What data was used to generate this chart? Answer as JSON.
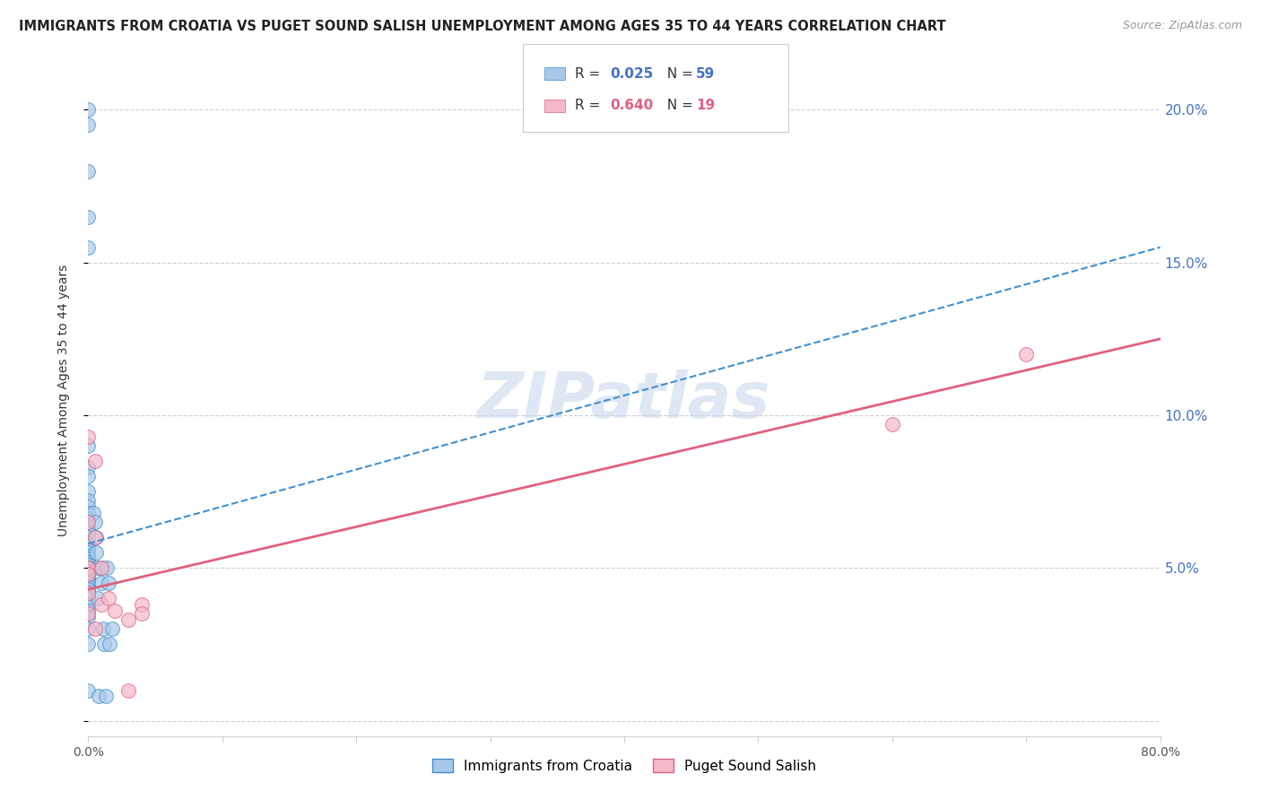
{
  "title": "IMMIGRANTS FROM CROATIA VS PUGET SOUND SALISH UNEMPLOYMENT AMONG AGES 35 TO 44 YEARS CORRELATION CHART",
  "source": "Source: ZipAtlas.com",
  "ylabel": "Unemployment Among Ages 35 to 44 years",
  "xlim": [
    0.0,
    0.8
  ],
  "ylim": [
    -0.005,
    0.215
  ],
  "blue_R": 0.025,
  "blue_N": 59,
  "pink_R": 0.64,
  "pink_N": 19,
  "blue_color": "#a8c8e8",
  "pink_color": "#f4b8c8",
  "blue_edge_color": "#4090d0",
  "pink_edge_color": "#e06080",
  "blue_line_color": "#4090d0",
  "pink_line_color": "#e06080",
  "watermark": "ZIPatlas",
  "blue_scatter_x": [
    0.0,
    0.0,
    0.0,
    0.0,
    0.0,
    0.0,
    0.0,
    0.0,
    0.0,
    0.0,
    0.0,
    0.0,
    0.0,
    0.0,
    0.0,
    0.0,
    0.0,
    0.0,
    0.0,
    0.0,
    0.0,
    0.0,
    0.0,
    0.0,
    0.0,
    0.0,
    0.0,
    0.0,
    0.0,
    0.0,
    0.0,
    0.0,
    0.0,
    0.0,
    0.0,
    0.0,
    0.0,
    0.0,
    0.0,
    0.0,
    0.0,
    0.0,
    0.0,
    0.004,
    0.005,
    0.006,
    0.006,
    0.007,
    0.007,
    0.008,
    0.01,
    0.01,
    0.011,
    0.012,
    0.013,
    0.014,
    0.015,
    0.016,
    0.018
  ],
  "blue_scatter_y": [
    0.2,
    0.195,
    0.18,
    0.165,
    0.155,
    0.09,
    0.083,
    0.08,
    0.075,
    0.072,
    0.07,
    0.068,
    0.066,
    0.065,
    0.063,
    0.062,
    0.06,
    0.058,
    0.058,
    0.057,
    0.056,
    0.055,
    0.054,
    0.053,
    0.052,
    0.051,
    0.05,
    0.05,
    0.049,
    0.048,
    0.047,
    0.046,
    0.045,
    0.044,
    0.043,
    0.042,
    0.04,
    0.038,
    0.036,
    0.034,
    0.03,
    0.025,
    0.01,
    0.068,
    0.065,
    0.06,
    0.055,
    0.05,
    0.04,
    0.008,
    0.05,
    0.045,
    0.03,
    0.025,
    0.008,
    0.05,
    0.045,
    0.025,
    0.03
  ],
  "pink_scatter_x": [
    0.0,
    0.0,
    0.0,
    0.0,
    0.0,
    0.0,
    0.005,
    0.005,
    0.005,
    0.01,
    0.01,
    0.015,
    0.02,
    0.03,
    0.03,
    0.04,
    0.04,
    0.6,
    0.7
  ],
  "pink_scatter_y": [
    0.093,
    0.065,
    0.05,
    0.048,
    0.042,
    0.035,
    0.085,
    0.06,
    0.03,
    0.05,
    0.038,
    0.04,
    0.036,
    0.033,
    0.01,
    0.038,
    0.035,
    0.097,
    0.12
  ],
  "blue_trend_x": [
    0.0,
    0.8
  ],
  "blue_trend_y": [
    0.058,
    0.155
  ],
  "pink_trend_x": [
    0.0,
    0.8
  ],
  "pink_trend_y": [
    0.043,
    0.125
  ],
  "ytick_positions": [
    0.0,
    0.05,
    0.1,
    0.15,
    0.2
  ],
  "ytick_labels_right": [
    "",
    "5.0%",
    "10.0%",
    "15.0%",
    "20.0%"
  ],
  "xtick_positions": [
    0.0,
    0.1,
    0.2,
    0.3,
    0.4,
    0.5,
    0.6,
    0.7,
    0.8
  ],
  "xtick_labels": [
    "0.0%",
    "",
    "",
    "",
    "",
    "",
    "",
    "",
    "80.0%"
  ],
  "grid_color": "#d0d0d0",
  "bg_color": "#ffffff",
  "right_ytick_color": "#4472c4",
  "title_color": "#222222",
  "source_color": "#999999",
  "ylabel_color": "#333333"
}
